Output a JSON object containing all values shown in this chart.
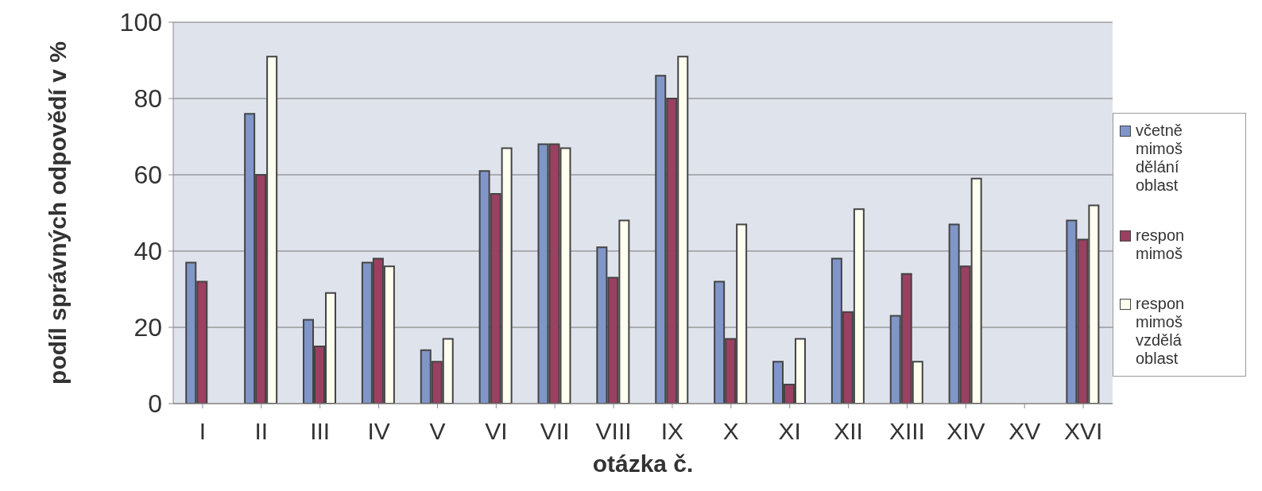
{
  "chart_data": {
    "type": "bar",
    "xlabel": "otázka č.",
    "ylabel": "podíl správných odpovědí v %",
    "categories": [
      "I",
      "II",
      "III",
      "IV",
      "V",
      "VI",
      "VII",
      "VIII",
      "IX",
      "X",
      "XI",
      "XII",
      "XIII",
      "XIV",
      "XV",
      "XVI"
    ],
    "series": [
      {
        "name": "včetně mimoš dělání oblast",
        "color": "#8096c8",
        "values": [
          37,
          76,
          22,
          37,
          14,
          61,
          68,
          41,
          86,
          32,
          11,
          38,
          23,
          47,
          null,
          48
        ]
      },
      {
        "name": "respon mimoš",
        "color": "#9a4060",
        "values": [
          32,
          60,
          15,
          38,
          11,
          55,
          68,
          33,
          80,
          17,
          5,
          24,
          34,
          36,
          null,
          43
        ]
      },
      {
        "name": "respon mimoš vzdělá oblast",
        "color": "#fffff0",
        "values": [
          null,
          91,
          29,
          36,
          17,
          67,
          67,
          48,
          91,
          47,
          17,
          51,
          11,
          59,
          null,
          52
        ]
      }
    ],
    "ylim": [
      0,
      100
    ],
    "yticks": [
      0,
      20,
      40,
      60,
      80,
      100
    ],
    "grid": "y",
    "legend": "right"
  }
}
